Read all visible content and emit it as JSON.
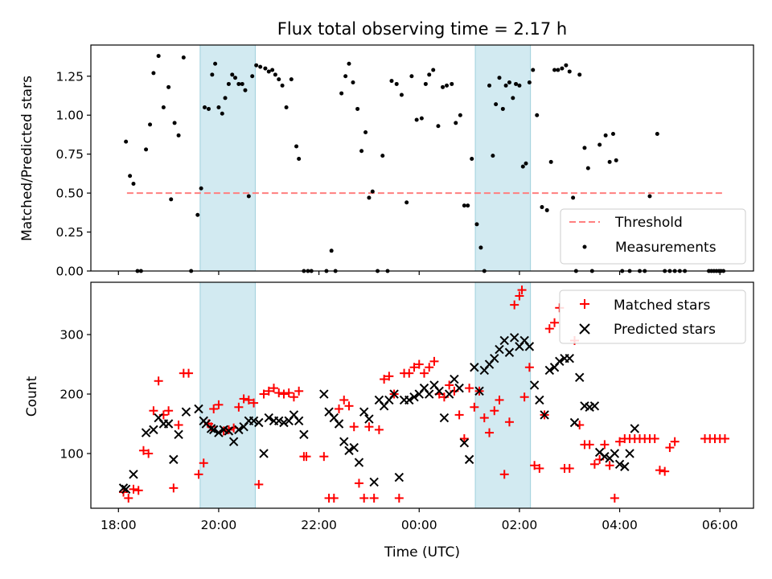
{
  "chart_data": [
    {
      "type": "scatter",
      "title": "Flux total observing time = 2.17 h",
      "xlabel": "",
      "ylabel": "Matched/Predicted stars",
      "xlim": [
        17.45,
        30.67
      ],
      "ylim": [
        0,
        1.45
      ],
      "yticks": [
        0,
        0.25,
        0.5,
        0.75,
        1.0,
        1.25
      ],
      "ytick_labels": [
        "0.00",
        "0.25",
        "0.50",
        "0.75",
        "1.00",
        "1.25"
      ],
      "grid": false,
      "legend_position": "lower-right",
      "shaded_intervals": [
        [
          19.63,
          20.73
        ],
        [
          25.12,
          26.22
        ]
      ],
      "threshold": {
        "name": "Threshold",
        "value": 0.5,
        "x_range": [
          18.17,
          30.05
        ],
        "color": "#ff7f7f"
      },
      "series": [
        {
          "name": "Measurements",
          "color": "#000000",
          "x": [
            18.15,
            18.23,
            18.3,
            18.38,
            18.45,
            18.55,
            18.63,
            18.7,
            18.8,
            18.9,
            19.0,
            19.05,
            19.12,
            19.2,
            19.3,
            19.45,
            19.58,
            19.65,
            19.72,
            19.8,
            19.87,
            19.93,
            20.0,
            20.07,
            20.13,
            20.2,
            20.27,
            20.33,
            20.4,
            20.47,
            20.53,
            20.6,
            20.67,
            20.75,
            20.83,
            20.93,
            21.0,
            21.07,
            21.13,
            21.2,
            21.27,
            21.35,
            21.45,
            21.55,
            21.6,
            21.7,
            21.78,
            21.85,
            22.15,
            22.25,
            22.33,
            22.45,
            22.53,
            22.6,
            22.68,
            22.77,
            22.85,
            22.93,
            23.0,
            23.07,
            23.17,
            23.27,
            23.37,
            23.45,
            23.55,
            23.65,
            23.75,
            23.85,
            23.95,
            24.05,
            24.13,
            24.2,
            24.28,
            24.38,
            24.47,
            24.55,
            24.65,
            24.73,
            24.82,
            24.9,
            24.97,
            25.05,
            25.15,
            25.23,
            25.3,
            25.4,
            25.47,
            25.53,
            25.6,
            25.67,
            25.73,
            25.8,
            25.87,
            25.93,
            26.0,
            26.07,
            26.13,
            26.2,
            26.27,
            26.35,
            26.45,
            26.55,
            26.63,
            26.7,
            26.77,
            26.85,
            26.93,
            27.0,
            27.07,
            27.13,
            27.2,
            27.3,
            27.37,
            27.45,
            27.6,
            27.72,
            27.8,
            27.87,
            27.93,
            28.05,
            28.2,
            28.4,
            28.5,
            28.6,
            28.75,
            28.9,
            29.0,
            29.1,
            29.2,
            29.3,
            29.78,
            29.83,
            29.88,
            29.93,
            29.98,
            30.02,
            30.07
          ],
          "y": [
            0.83,
            0.61,
            0.56,
            0.0,
            0.0,
            0.78,
            0.94,
            1.27,
            1.38,
            1.05,
            1.18,
            0.46,
            0.95,
            0.87,
            1.37,
            0.0,
            0.36,
            0.53,
            1.05,
            1.04,
            1.26,
            1.33,
            1.05,
            1.01,
            1.11,
            1.2,
            1.26,
            1.24,
            1.2,
            1.2,
            1.16,
            0.48,
            1.25,
            1.32,
            1.31,
            1.3,
            1.28,
            1.29,
            1.26,
            1.23,
            1.19,
            1.05,
            1.23,
            0.8,
            0.72,
            0.0,
            0.0,
            0.0,
            0.0,
            0.13,
            0.0,
            1.14,
            1.25,
            1.33,
            1.21,
            1.04,
            0.77,
            0.89,
            0.47,
            0.51,
            0.0,
            0.74,
            0.0,
            1.22,
            1.2,
            1.13,
            0.44,
            1.25,
            0.97,
            0.98,
            1.2,
            1.26,
            1.29,
            0.93,
            1.18,
            1.19,
            1.2,
            0.95,
            1.0,
            0.42,
            0.42,
            0.72,
            0.3,
            0.15,
            0.0,
            1.19,
            0.74,
            1.07,
            1.24,
            1.04,
            1.19,
            1.21,
            1.11,
            1.2,
            1.19,
            0.67,
            0.69,
            1.21,
            1.29,
            1.0,
            0.41,
            0.39,
            0.7,
            1.29,
            1.29,
            1.3,
            1.32,
            1.28,
            0.47,
            0.0,
            1.26,
            0.79,
            0.66,
            0.0,
            0.81,
            0.87,
            0.7,
            0.88,
            0.71,
            0.0,
            0.0,
            0.0,
            0.0,
            0.48,
            0.88,
            0.0,
            0.0,
            0.0,
            0.0,
            0.0,
            0.0,
            0.0,
            0.0,
            0.0,
            0.0,
            0.0,
            0.0
          ]
        }
      ]
    },
    {
      "type": "scatter",
      "title": "",
      "xlabel": "Time (UTC)",
      "ylabel": "Count",
      "xlim": [
        17.45,
        30.67
      ],
      "ylim": [
        8,
        388
      ],
      "yticks": [
        100,
        200,
        300
      ],
      "ytick_labels": [
        "100",
        "200",
        "300"
      ],
      "xticks": [
        18,
        20,
        22,
        24,
        26,
        28,
        30
      ],
      "xtick_labels": [
        "18:00",
        "20:00",
        "22:00",
        "00:00",
        "02:00",
        "04:00",
        "06:00"
      ],
      "grid": false,
      "legend_position": "upper-right",
      "shaded_intervals": [
        [
          19.63,
          20.73
        ],
        [
          25.12,
          26.22
        ]
      ],
      "series": [
        {
          "name": "Matched stars",
          "marker": "plus",
          "color": "#ff0000",
          "x": [
            18.1,
            18.2,
            18.3,
            18.4,
            18.5,
            18.6,
            18.7,
            18.8,
            18.9,
            19.0,
            19.1,
            19.2,
            19.3,
            19.4,
            19.6,
            19.7,
            19.8,
            19.85,
            19.9,
            20.0,
            20.1,
            20.2,
            20.3,
            20.4,
            20.5,
            20.6,
            20.7,
            20.8,
            20.9,
            21.0,
            21.1,
            21.2,
            21.3,
            21.4,
            21.5,
            21.6,
            21.7,
            21.75,
            22.1,
            22.2,
            22.3,
            22.4,
            22.5,
            22.6,
            22.7,
            22.8,
            22.9,
            23.0,
            23.1,
            23.2,
            23.3,
            23.4,
            23.5,
            23.6,
            23.7,
            23.8,
            23.9,
            24.0,
            24.1,
            24.2,
            24.3,
            24.4,
            24.5,
            24.6,
            24.7,
            24.8,
            24.9,
            25.0,
            25.1,
            25.2,
            25.3,
            25.4,
            25.5,
            25.6,
            25.7,
            25.8,
            25.9,
            26.0,
            26.05,
            26.1,
            26.2,
            26.3,
            26.4,
            26.5,
            26.6,
            26.7,
            26.8,
            26.9,
            27.0,
            27.1,
            27.2,
            27.3,
            27.4,
            27.5,
            27.6,
            27.7,
            27.8,
            27.9,
            28.0,
            28.1,
            28.2,
            28.3,
            28.4,
            28.5,
            28.6,
            28.7,
            28.8,
            28.9,
            29.0,
            29.1,
            29.7,
            29.8,
            29.9,
            30.0,
            30.1
          ],
          "y": [
            35,
            25,
            40,
            38,
            105,
            100,
            172,
            222,
            165,
            172,
            42,
            148,
            235,
            235,
            65,
            84,
            150,
            145,
            175,
            182,
            138,
            140,
            143,
            178,
            192,
            190,
            185,
            48,
            200,
            205,
            210,
            202,
            200,
            202,
            195,
            205,
            95,
            95,
            95,
            25,
            25,
            175,
            190,
            180,
            145,
            50,
            25,
            145,
            25,
            140,
            225,
            230,
            200,
            25,
            235,
            235,
            245,
            250,
            235,
            245,
            255,
            200,
            195,
            215,
            205,
            165,
            125,
            210,
            178,
            205,
            160,
            135,
            172,
            190,
            65,
            153,
            350,
            365,
            375,
            195,
            245,
            80,
            75,
            165,
            310,
            320,
            345,
            75,
            75,
            290,
            148,
            115,
            115,
            82,
            90,
            115,
            80,
            25,
            120,
            125,
            125,
            125,
            125,
            125,
            125,
            125,
            72,
            70,
            110,
            120,
            125,
            125,
            125,
            125,
            125
          ]
        },
        {
          "name": "Predicted stars",
          "marker": "x",
          "color": "#000000",
          "x": [
            18.1,
            18.15,
            18.3,
            18.55,
            18.7,
            18.8,
            18.9,
            19.0,
            19.1,
            19.2,
            19.35,
            19.6,
            19.7,
            19.75,
            19.85,
            19.9,
            20.0,
            20.1,
            20.2,
            20.3,
            20.4,
            20.5,
            20.6,
            20.7,
            20.8,
            20.9,
            21.0,
            21.1,
            21.2,
            21.3,
            21.4,
            21.5,
            21.6,
            21.7,
            22.1,
            22.2,
            22.3,
            22.4,
            22.5,
            22.6,
            22.7,
            22.8,
            22.9,
            23.0,
            23.1,
            23.2,
            23.3,
            23.4,
            23.5,
            23.6,
            23.7,
            23.8,
            23.9,
            24.0,
            24.1,
            24.2,
            24.3,
            24.4,
            24.5,
            24.6,
            24.7,
            24.8,
            24.9,
            25.0,
            25.1,
            25.2,
            25.3,
            25.4,
            25.5,
            25.6,
            25.7,
            25.8,
            25.9,
            26.0,
            26.1,
            26.2,
            26.3,
            26.4,
            26.5,
            26.6,
            26.7,
            26.8,
            26.9,
            27.0,
            27.1,
            27.2,
            27.3,
            27.4,
            27.5,
            27.6,
            27.7,
            27.8,
            27.9,
            28.0,
            28.1,
            28.2,
            28.3
          ],
          "y": [
            42,
            40,
            65,
            135,
            140,
            160,
            150,
            150,
            90,
            132,
            170,
            175,
            155,
            150,
            142,
            140,
            135,
            140,
            138,
            120,
            140,
            145,
            155,
            155,
            152,
            100,
            160,
            155,
            155,
            152,
            155,
            165,
            155,
            132,
            200,
            170,
            160,
            150,
            120,
            105,
            110,
            85,
            170,
            158,
            52,
            190,
            180,
            190,
            200,
            60,
            190,
            190,
            195,
            200,
            210,
            200,
            215,
            205,
            160,
            200,
            225,
            210,
            118,
            90,
            245,
            205,
            240,
            250,
            260,
            275,
            290,
            270,
            295,
            280,
            290,
            280,
            215,
            190,
            165,
            240,
            245,
            255,
            260,
            260,
            152,
            228,
            180,
            178,
            180,
            102,
            95,
            92,
            100,
            82,
            78,
            100,
            142
          ]
        }
      ]
    }
  ]
}
